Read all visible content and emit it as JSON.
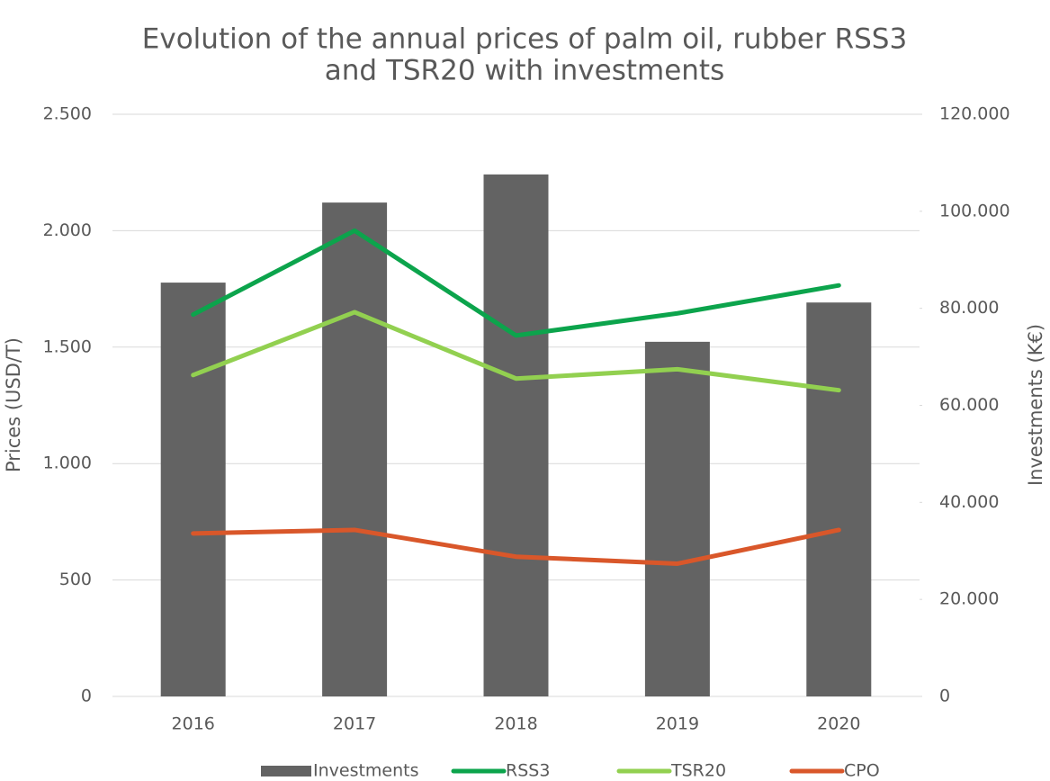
{
  "chart_data": {
    "type": "bar",
    "title": [
      "Evolution of the annual prices of palm oil, rubber RSS3",
      "and TSR20 with investments"
    ],
    "y_label": "Prices (USD/T)",
    "y2_label": "Investments (K€)",
    "categories": [
      "2016",
      "2017",
      "2018",
      "2019",
      "2020"
    ],
    "series": [
      {
        "name": "Investments",
        "type": "bar",
        "axis": "y2",
        "color": "#636363",
        "values": [
          85300,
          101800,
          107600,
          73100,
          81200
        ]
      },
      {
        "name": "RSS3",
        "type": "line",
        "color": "#0ca44c",
        "values": [
          1640,
          2000,
          1550,
          1645,
          1765
        ]
      },
      {
        "name": "TSR20",
        "type": "line",
        "color": "#92d050",
        "values": [
          1380,
          1650,
          1365,
          1405,
          1315
        ]
      },
      {
        "name": "CPO",
        "type": "line",
        "color": "#d9572a",
        "values": [
          700,
          715,
          600,
          570,
          715
        ]
      }
    ],
    "ylim": [
      0,
      2500
    ],
    "yticks": [
      0,
      500,
      {
        "value": 1000,
        "label": "1.000"
      },
      {
        "value": 1500,
        "label": "1.500"
      },
      {
        "value": 2000,
        "label": "2.000"
      },
      {
        "value": 2500,
        "label": "2.500"
      }
    ],
    "y2lim": [
      0,
      120000
    ],
    "y2ticks": [
      0,
      {
        "value": 20000,
        "label": "20.000"
      },
      {
        "value": 40000,
        "label": "40.000"
      },
      {
        "value": 60000,
        "label": "60.000"
      },
      {
        "value": 80000,
        "label": "80.000"
      },
      {
        "value": 100000,
        "label": "100.000"
      },
      {
        "value": 120000,
        "label": "120.000"
      }
    ],
    "grid": true,
    "legend": "bottom"
  }
}
